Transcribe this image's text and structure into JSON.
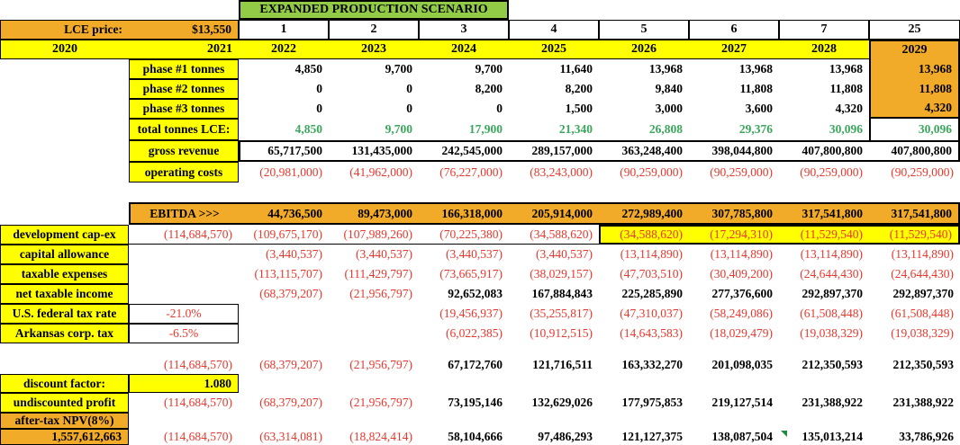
{
  "scenario_title": "EXPANDED PRODUCTION SCENARIO",
  "price": {
    "label": "LCE price:",
    "value": "$13,550"
  },
  "periods": [
    "1",
    "2",
    "3",
    "4",
    "5",
    "6",
    "7",
    "25"
  ],
  "head_years": [
    "2020",
    "2021"
  ],
  "years": [
    "2022",
    "2023",
    "2024",
    "2025",
    "2026",
    "2027",
    "2028",
    "2029"
  ],
  "rows": {
    "phase1": {
      "label": "phase #1 tonnes",
      "values": [
        "4,850",
        "9,700",
        "9,700",
        "11,640",
        "13,968",
        "13,968",
        "13,968",
        "13,968"
      ]
    },
    "phase2": {
      "label": "phase #2 tonnes",
      "values": [
        "0",
        "0",
        "8,200",
        "8,200",
        "9,840",
        "11,808",
        "11,808",
        "11,808"
      ]
    },
    "phase3": {
      "label": "phase #3 tonnes",
      "values": [
        "0",
        "0",
        "0",
        "1,500",
        "3,000",
        "3,600",
        "4,320",
        "4,320"
      ]
    },
    "total": {
      "label": "total tonnes LCE:",
      "values": [
        "4,850",
        "9,700",
        "17,900",
        "21,340",
        "26,808",
        "29,376",
        "30,096",
        "30,096"
      ]
    },
    "gross_revenue": {
      "label": "gross revenue",
      "values": [
        "65,717,500",
        "131,435,000",
        "242,545,000",
        "289,157,000",
        "363,248,400",
        "398,044,800",
        "407,800,800",
        "407,800,800"
      ]
    },
    "operating_costs": {
      "label": "operating costs",
      "values": [
        "(20,981,000)",
        "(41,962,000)",
        "(76,227,000)",
        "(83,243,000)",
        "(90,259,000)",
        "(90,259,000)",
        "(90,259,000)",
        "(90,259,000)"
      ]
    },
    "ebitda": {
      "label": "EBITDA >>>",
      "values": [
        "44,736,500",
        "89,473,000",
        "166,318,000",
        "205,914,000",
        "272,989,400",
        "307,785,800",
        "317,541,800",
        "317,541,800"
      ]
    },
    "dev_capex": {
      "label": "development cap-ex",
      "y2021": "(114,684,570)",
      "values": [
        "(109,675,170)",
        "(107,989,260)",
        "(70,225,380)",
        "(34,588,620)",
        "(34,588,620)",
        "(17,294,310)",
        "(11,529,540)",
        "(11,529,540)"
      ]
    },
    "capital_allowance": {
      "label": "capital allowance",
      "values": [
        "(3,440,537)",
        "(3,440,537)",
        "(3,440,537)",
        "(3,440,537)",
        "(13,114,890)",
        "(13,114,890)",
        "(13,114,890)",
        "(13,114,890)"
      ]
    },
    "taxable_expenses": {
      "label": "taxable expenses",
      "values": [
        "(113,115,707)",
        "(111,429,797)",
        "(73,665,917)",
        "(38,029,157)",
        "(47,703,510)",
        "(30,409,200)",
        "(24,644,430)",
        "(24,644,430)"
      ]
    },
    "net_taxable_income": {
      "label": "net taxable income",
      "values": [
        "(68,379,207)",
        "(21,956,797)",
        "92,652,083",
        "167,884,843",
        "225,285,890",
        "277,376,600",
        "292,897,370",
        "292,897,370"
      ]
    },
    "us_federal_tax": {
      "label": "U.S. federal tax rate",
      "rate": "-21.0%",
      "values": [
        "",
        "",
        "(19,456,937)",
        "(35,255,817)",
        "(47,310,037)",
        "(58,249,086)",
        "(61,508,448)",
        "(61,508,448)"
      ]
    },
    "arkansas_tax": {
      "label": "Arkansas corp. tax",
      "rate": "-6.5%",
      "values": [
        "",
        "",
        "(6,022,385)",
        "(10,912,515)",
        "(14,643,583)",
        "(18,029,479)",
        "(19,038,329)",
        "(19,038,329)"
      ]
    },
    "net_cash": {
      "y2021": "(114,684,570)",
      "values": [
        "(68,379,207)",
        "(21,956,797)",
        "67,172,760",
        "121,716,511",
        "163,332,270",
        "201,098,035",
        "212,350,593",
        "212,350,593"
      ]
    },
    "discount_factor": {
      "label": "discount factor:",
      "value": "1.080"
    },
    "undiscounted_profit": {
      "label": "undiscounted profit",
      "y2021": "(114,684,570)",
      "values": [
        "(68,379,207)",
        "(21,956,797)",
        "73,195,146",
        "132,629,026",
        "177,975,853",
        "219,127,514",
        "231,388,922",
        "231,388,922"
      ]
    },
    "npv": {
      "label": "after-tax NPV(8%)",
      "total": "1,557,612,663",
      "y2021": "(114,684,570)",
      "values": [
        "(63,314,081)",
        "(18,824,414)",
        "58,104,666",
        "97,486,293",
        "121,127,375",
        "138,087,504",
        "135,013,214",
        "33,786,926"
      ]
    }
  },
  "colors": {
    "yellow_fill": "#ffff00",
    "orange_fill": "#f2ab28",
    "green_fill": "#92cc47",
    "green_text": "#3aa75c",
    "red_text": "#e8372c"
  }
}
